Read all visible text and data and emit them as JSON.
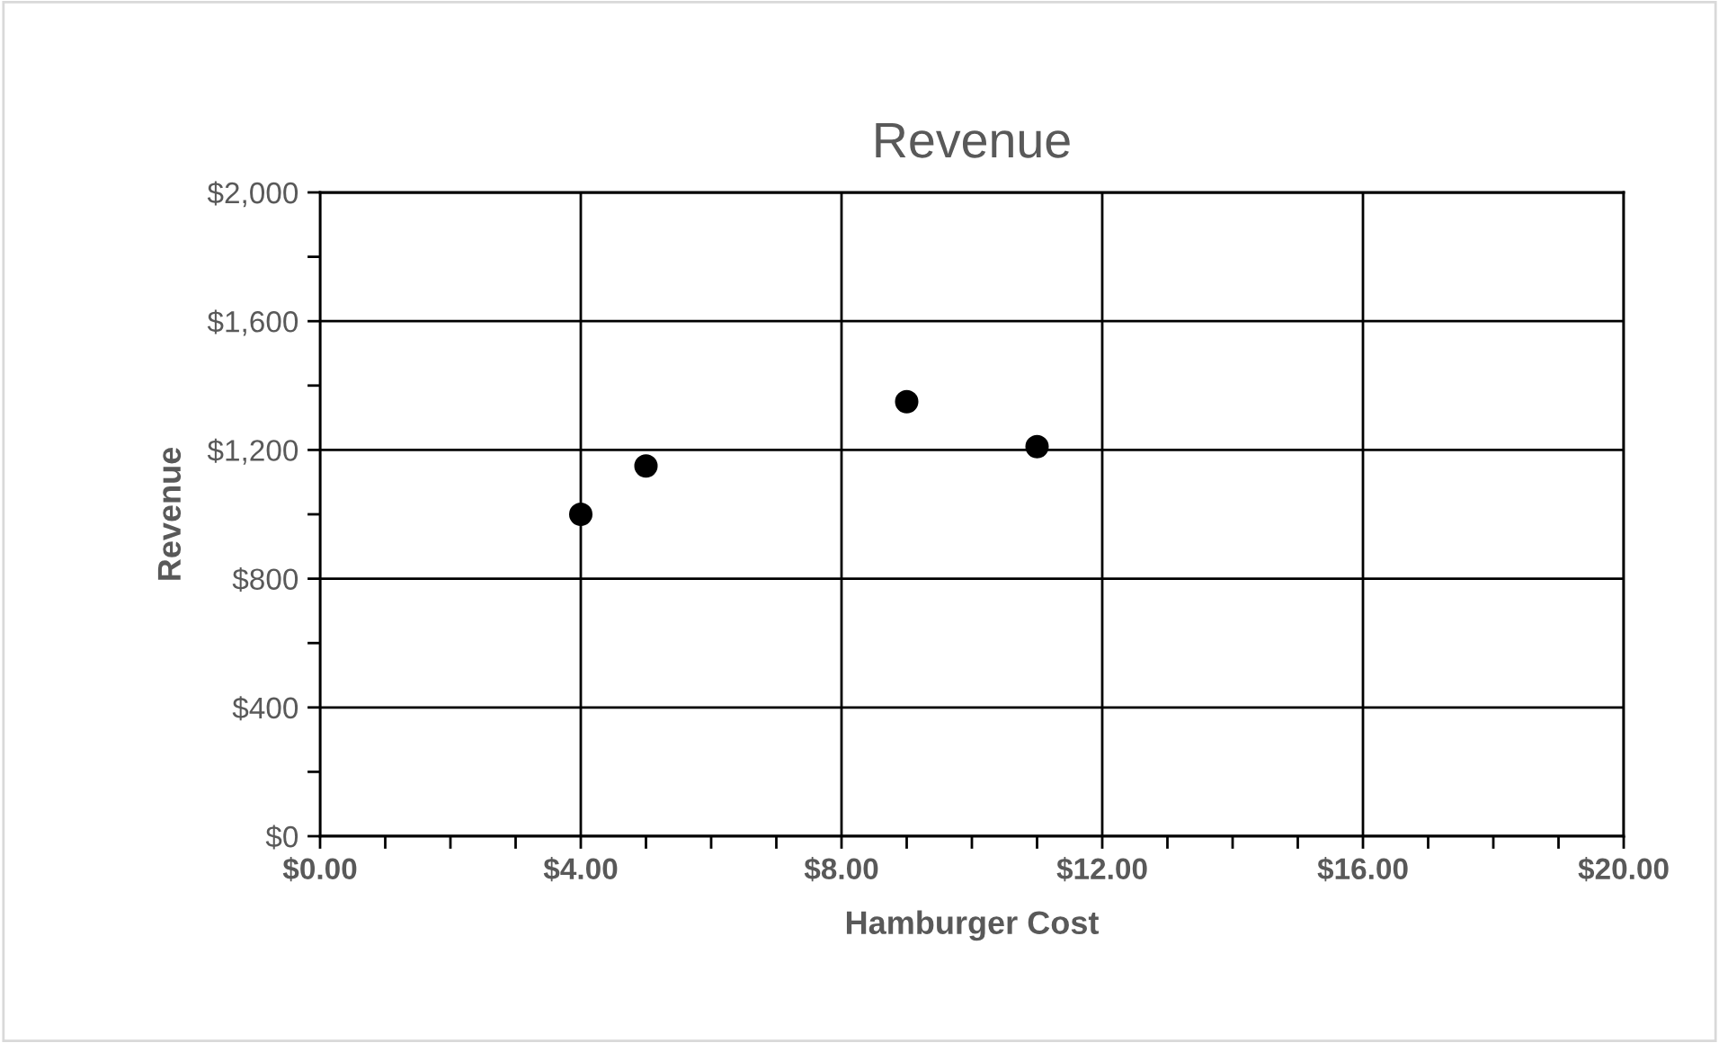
{
  "chart_data": {
    "type": "scatter",
    "title": "Revenue",
    "xlabel": "Hamburger Cost",
    "ylabel": "Revenue",
    "x": [
      4,
      5,
      9,
      11
    ],
    "series": [
      {
        "color": "#000000",
        "values": [
          1000,
          1150,
          1350,
          1210
        ]
      }
    ],
    "marker": "circle",
    "grid": true,
    "xlim": [
      0,
      20
    ],
    "xticks": [
      {
        "value": 0,
        "label": "$0.00"
      },
      {
        "value": 1,
        "label": null
      },
      {
        "value": 2,
        "label": null
      },
      {
        "value": 3,
        "label": null
      },
      {
        "value": 4,
        "label": "$4.00"
      },
      {
        "value": 5,
        "label": null
      },
      {
        "value": 6,
        "label": null
      },
      {
        "value": 7,
        "label": null
      },
      {
        "value": 8,
        "label": "$8.00"
      },
      {
        "value": 9,
        "label": null
      },
      {
        "value": 10,
        "label": null
      },
      {
        "value": 11,
        "label": null
      },
      {
        "value": 12,
        "label": "$12.00"
      },
      {
        "value": 13,
        "label": null
      },
      {
        "value": 14,
        "label": null
      },
      {
        "value": 15,
        "label": null
      },
      {
        "value": 16,
        "label": "$16.00"
      },
      {
        "value": 17,
        "label": null
      },
      {
        "value": 18,
        "label": null
      },
      {
        "value": 19,
        "label": null
      },
      {
        "value": 20,
        "label": "$20.00"
      }
    ],
    "ylim": [
      0,
      2000
    ],
    "yticks": [
      {
        "value": 0,
        "label": "$0"
      },
      {
        "value": 200,
        "label": null
      },
      {
        "value": 400,
        "label": "$400"
      },
      {
        "value": 600,
        "label": null
      },
      {
        "value": 800,
        "label": "$800"
      },
      {
        "value": 1000,
        "label": null
      },
      {
        "value": 1200,
        "label": "$1,200"
      },
      {
        "value": 1400,
        "label": null
      },
      {
        "value": 1600,
        "label": "$1,600"
      },
      {
        "value": 1800,
        "label": null
      },
      {
        "value": 2000,
        "label": "$2,000"
      }
    ]
  }
}
